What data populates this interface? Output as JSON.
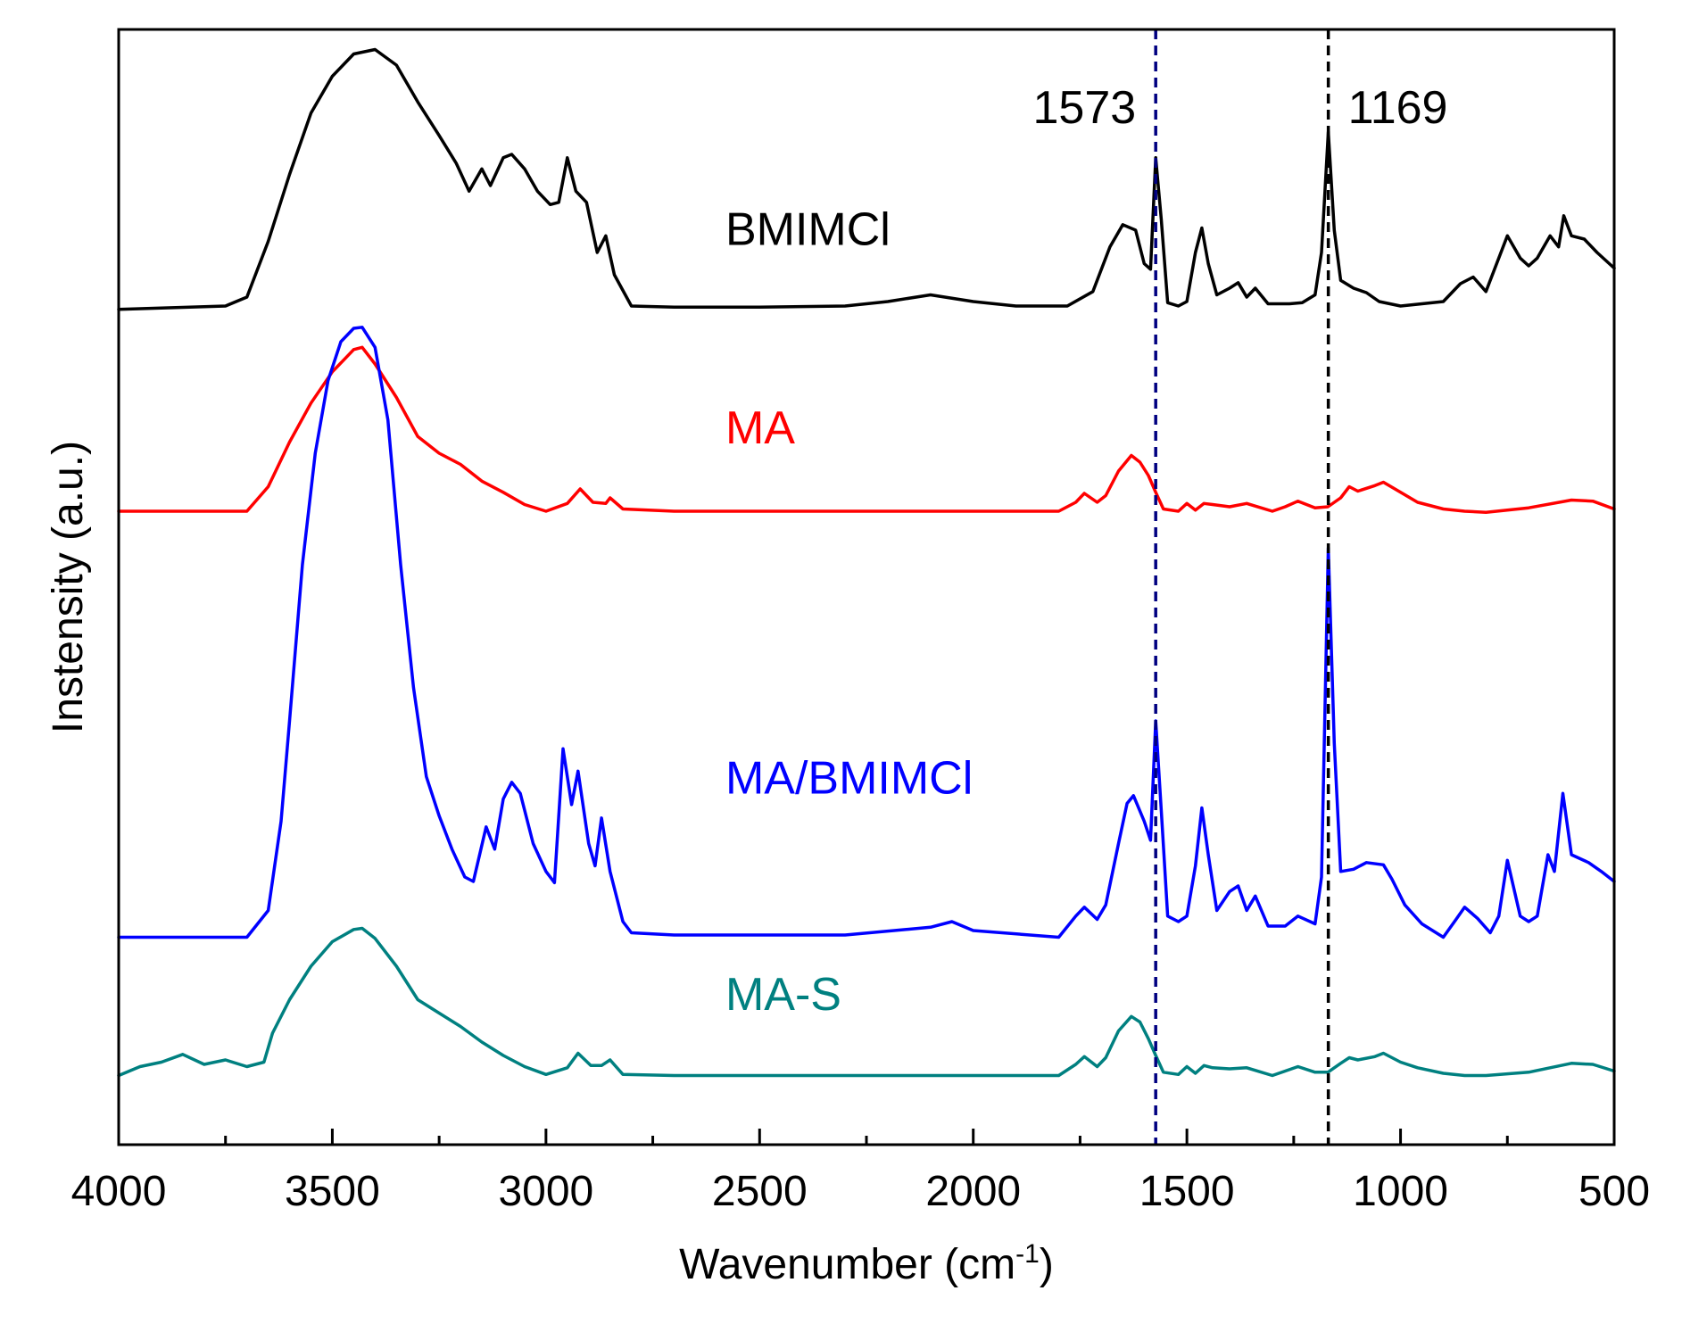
{
  "chart_data": {
    "type": "line",
    "title": "",
    "xlabel": "Wavenumber (cm",
    "xlabel_sup": "-1",
    "xlabel_close": ")",
    "ylabel": "Instensity (a.u.)",
    "xlim": [
      4000,
      500
    ],
    "ylim": [
      0,
      100
    ],
    "x_ticks": [
      4000,
      3500,
      3000,
      2500,
      2000,
      1500,
      1000,
      500
    ],
    "x_tick_labels": [
      "4000",
      "3500",
      "3000",
      "2500",
      "2000",
      "1500",
      "1000",
      "500"
    ],
    "x_minor_ticks": [
      3750,
      3250,
      2750,
      2250,
      1750,
      1250,
      750
    ],
    "grid": false,
    "series": [
      {
        "name": "BMIMCl",
        "color": "#000000",
        "label_x": 2580,
        "label_y": 80.7,
        "points": [
          [
            4000,
            74.9
          ],
          [
            3750,
            75.2
          ],
          [
            3700,
            76
          ],
          [
            3650,
            81
          ],
          [
            3600,
            87
          ],
          [
            3550,
            92.5
          ],
          [
            3500,
            95.8
          ],
          [
            3450,
            97.8
          ],
          [
            3400,
            98.2
          ],
          [
            3350,
            96.8
          ],
          [
            3300,
            93.5
          ],
          [
            3250,
            90.5
          ],
          [
            3210,
            88
          ],
          [
            3180,
            85.5
          ],
          [
            3150,
            87.5
          ],
          [
            3130,
            86
          ],
          [
            3100,
            88.5
          ],
          [
            3080,
            88.8
          ],
          [
            3050,
            87.5
          ],
          [
            3020,
            85.5
          ],
          [
            2990,
            84.3
          ],
          [
            2970,
            84.5
          ],
          [
            2950,
            88.5
          ],
          [
            2930,
            85.5
          ],
          [
            2905,
            84.5
          ],
          [
            2880,
            80
          ],
          [
            2860,
            81.5
          ],
          [
            2840,
            78
          ],
          [
            2800,
            75.2
          ],
          [
            2700,
            75.1
          ],
          [
            2500,
            75.1
          ],
          [
            2300,
            75.2
          ],
          [
            2200,
            75.6
          ],
          [
            2100,
            76.2
          ],
          [
            2000,
            75.6
          ],
          [
            1900,
            75.2
          ],
          [
            1780,
            75.2
          ],
          [
            1720,
            76.5
          ],
          [
            1680,
            80.5
          ],
          [
            1650,
            82.5
          ],
          [
            1620,
            82
          ],
          [
            1600,
            79
          ],
          [
            1585,
            78.5
          ],
          [
            1573,
            88.5
          ],
          [
            1560,
            83
          ],
          [
            1545,
            75.5
          ],
          [
            1520,
            75.2
          ],
          [
            1500,
            75.6
          ],
          [
            1480,
            80
          ],
          [
            1465,
            82.2
          ],
          [
            1450,
            79
          ],
          [
            1430,
            76.2
          ],
          [
            1400,
            76.8
          ],
          [
            1380,
            77.3
          ],
          [
            1360,
            76
          ],
          [
            1340,
            76.8
          ],
          [
            1310,
            75.4
          ],
          [
            1260,
            75.4
          ],
          [
            1230,
            75.5
          ],
          [
            1200,
            76.2
          ],
          [
            1185,
            80
          ],
          [
            1169,
            90.8
          ],
          [
            1155,
            82
          ],
          [
            1140,
            77.5
          ],
          [
            1110,
            76.8
          ],
          [
            1080,
            76.4
          ],
          [
            1050,
            75.6
          ],
          [
            1000,
            75.2
          ],
          [
            950,
            75.4
          ],
          [
            900,
            75.6
          ],
          [
            860,
            77.2
          ],
          [
            830,
            77.8
          ],
          [
            800,
            76.5
          ],
          [
            780,
            78.5
          ],
          [
            750,
            81.5
          ],
          [
            720,
            79.5
          ],
          [
            700,
            78.8
          ],
          [
            680,
            79.5
          ],
          [
            650,
            81.5
          ],
          [
            630,
            80.5
          ],
          [
            618,
            83.3
          ],
          [
            600,
            81.5
          ],
          [
            570,
            81.2
          ],
          [
            540,
            80
          ],
          [
            500,
            78.6
          ]
        ]
      },
      {
        "name": "MA",
        "color": "#ff0000",
        "label_x": 2580,
        "label_y": 62.9,
        "points": [
          [
            4000,
            56.8
          ],
          [
            3700,
            56.8
          ],
          [
            3650,
            59
          ],
          [
            3600,
            63
          ],
          [
            3550,
            66.5
          ],
          [
            3500,
            69.3
          ],
          [
            3450,
            71.3
          ],
          [
            3430,
            71.5
          ],
          [
            3400,
            70
          ],
          [
            3350,
            67
          ],
          [
            3300,
            63.5
          ],
          [
            3250,
            62
          ],
          [
            3200,
            61
          ],
          [
            3150,
            59.5
          ],
          [
            3100,
            58.5
          ],
          [
            3050,
            57.4
          ],
          [
            3000,
            56.8
          ],
          [
            2950,
            57.5
          ],
          [
            2920,
            58.8
          ],
          [
            2890,
            57.6
          ],
          [
            2860,
            57.5
          ],
          [
            2850,
            58
          ],
          [
            2820,
            57
          ],
          [
            2700,
            56.8
          ],
          [
            2300,
            56.8
          ],
          [
            1800,
            56.8
          ],
          [
            1760,
            57.6
          ],
          [
            1740,
            58.4
          ],
          [
            1710,
            57.6
          ],
          [
            1690,
            58.2
          ],
          [
            1660,
            60.4
          ],
          [
            1630,
            61.8
          ],
          [
            1610,
            61.2
          ],
          [
            1590,
            60
          ],
          [
            1573,
            58.5
          ],
          [
            1555,
            57
          ],
          [
            1520,
            56.8
          ],
          [
            1500,
            57.5
          ],
          [
            1480,
            56.9
          ],
          [
            1460,
            57.5
          ],
          [
            1440,
            57.4
          ],
          [
            1400,
            57.2
          ],
          [
            1360,
            57.5
          ],
          [
            1300,
            56.8
          ],
          [
            1270,
            57.2
          ],
          [
            1240,
            57.7
          ],
          [
            1200,
            57.1
          ],
          [
            1170,
            57.2
          ],
          [
            1140,
            58
          ],
          [
            1120,
            59
          ],
          [
            1100,
            58.6
          ],
          [
            1060,
            59.1
          ],
          [
            1040,
            59.4
          ],
          [
            1000,
            58.5
          ],
          [
            960,
            57.6
          ],
          [
            900,
            57
          ],
          [
            850,
            56.8
          ],
          [
            800,
            56.7
          ],
          [
            700,
            57.1
          ],
          [
            600,
            57.8
          ],
          [
            550,
            57.7
          ],
          [
            500,
            57
          ]
        ]
      },
      {
        "name": "MA/BMIMCl",
        "color": "#0000ff",
        "label_x": 2580,
        "label_y": 31.5,
        "points": [
          [
            4000,
            18.6
          ],
          [
            3700,
            18.6
          ],
          [
            3650,
            21
          ],
          [
            3620,
            29
          ],
          [
            3600,
            38
          ],
          [
            3570,
            52
          ],
          [
            3540,
            62
          ],
          [
            3510,
            68.5
          ],
          [
            3480,
            72
          ],
          [
            3450,
            73.2
          ],
          [
            3430,
            73.3
          ],
          [
            3400,
            71.5
          ],
          [
            3370,
            65
          ],
          [
            3340,
            52
          ],
          [
            3310,
            41
          ],
          [
            3280,
            33
          ],
          [
            3250,
            29.5
          ],
          [
            3220,
            26.5
          ],
          [
            3190,
            24
          ],
          [
            3170,
            23.6
          ],
          [
            3140,
            28.5
          ],
          [
            3120,
            26.5
          ],
          [
            3100,
            31
          ],
          [
            3080,
            32.5
          ],
          [
            3060,
            31.5
          ],
          [
            3030,
            27
          ],
          [
            3000,
            24.5
          ],
          [
            2980,
            23.5
          ],
          [
            2960,
            35.5
          ],
          [
            2940,
            30.5
          ],
          [
            2925,
            33.5
          ],
          [
            2900,
            27
          ],
          [
            2885,
            25
          ],
          [
            2870,
            29.3
          ],
          [
            2850,
            24.5
          ],
          [
            2820,
            20
          ],
          [
            2800,
            19
          ],
          [
            2700,
            18.8
          ],
          [
            2300,
            18.8
          ],
          [
            2100,
            19.5
          ],
          [
            2050,
            20
          ],
          [
            2000,
            19.2
          ],
          [
            1800,
            18.6
          ],
          [
            1760,
            20.5
          ],
          [
            1740,
            21.3
          ],
          [
            1710,
            20.2
          ],
          [
            1690,
            21.5
          ],
          [
            1660,
            27
          ],
          [
            1640,
            30.6
          ],
          [
            1625,
            31.3
          ],
          [
            1600,
            29
          ],
          [
            1585,
            27.3
          ],
          [
            1573,
            38
          ],
          [
            1560,
            30
          ],
          [
            1545,
            20.5
          ],
          [
            1520,
            20
          ],
          [
            1500,
            20.5
          ],
          [
            1480,
            25
          ],
          [
            1465,
            30.2
          ],
          [
            1450,
            26
          ],
          [
            1430,
            21
          ],
          [
            1400,
            22.7
          ],
          [
            1380,
            23.2
          ],
          [
            1360,
            21
          ],
          [
            1340,
            22.3
          ],
          [
            1310,
            19.6
          ],
          [
            1270,
            19.6
          ],
          [
            1240,
            20.5
          ],
          [
            1200,
            19.8
          ],
          [
            1185,
            24
          ],
          [
            1169,
            53.5
          ],
          [
            1155,
            36
          ],
          [
            1140,
            24.5
          ],
          [
            1110,
            24.7
          ],
          [
            1080,
            25.3
          ],
          [
            1040,
            25.1
          ],
          [
            1020,
            23.8
          ],
          [
            990,
            21.5
          ],
          [
            950,
            19.8
          ],
          [
            900,
            18.6
          ],
          [
            870,
            20.2
          ],
          [
            850,
            21.3
          ],
          [
            820,
            20.3
          ],
          [
            790,
            19
          ],
          [
            770,
            20.5
          ],
          [
            750,
            25.5
          ],
          [
            720,
            20.5
          ],
          [
            700,
            20
          ],
          [
            680,
            20.5
          ],
          [
            655,
            26
          ],
          [
            640,
            24.5
          ],
          [
            620,
            31.5
          ],
          [
            600,
            26
          ],
          [
            560,
            25.3
          ],
          [
            530,
            24.5
          ],
          [
            500,
            23.6
          ]
        ]
      },
      {
        "name": "MA-S",
        "color": "#008080",
        "label_x": 2580,
        "label_y": 12.1,
        "points": [
          [
            4000,
            6.2
          ],
          [
            3950,
            7
          ],
          [
            3900,
            7.4
          ],
          [
            3850,
            8.1
          ],
          [
            3800,
            7.2
          ],
          [
            3750,
            7.6
          ],
          [
            3700,
            7
          ],
          [
            3660,
            7.4
          ],
          [
            3640,
            10
          ],
          [
            3600,
            13
          ],
          [
            3550,
            16
          ],
          [
            3500,
            18.2
          ],
          [
            3450,
            19.3
          ],
          [
            3430,
            19.4
          ],
          [
            3400,
            18.5
          ],
          [
            3350,
            16
          ],
          [
            3300,
            13
          ],
          [
            3250,
            11.8
          ],
          [
            3200,
            10.6
          ],
          [
            3150,
            9.2
          ],
          [
            3100,
            8
          ],
          [
            3050,
            7
          ],
          [
            3000,
            6.3
          ],
          [
            2950,
            6.9
          ],
          [
            2925,
            8.2
          ],
          [
            2895,
            7.1
          ],
          [
            2870,
            7.1
          ],
          [
            2850,
            7.6
          ],
          [
            2820,
            6.3
          ],
          [
            2700,
            6.2
          ],
          [
            2300,
            6.2
          ],
          [
            1800,
            6.2
          ],
          [
            1760,
            7.2
          ],
          [
            1740,
            7.9
          ],
          [
            1710,
            7
          ],
          [
            1690,
            7.8
          ],
          [
            1660,
            10.2
          ],
          [
            1630,
            11.5
          ],
          [
            1610,
            11
          ],
          [
            1590,
            9.5
          ],
          [
            1573,
            8
          ],
          [
            1555,
            6.5
          ],
          [
            1520,
            6.3
          ],
          [
            1500,
            7
          ],
          [
            1480,
            6.4
          ],
          [
            1460,
            7.1
          ],
          [
            1440,
            6.9
          ],
          [
            1400,
            6.8
          ],
          [
            1360,
            6.9
          ],
          [
            1300,
            6.2
          ],
          [
            1270,
            6.6
          ],
          [
            1240,
            7
          ],
          [
            1200,
            6.5
          ],
          [
            1170,
            6.5
          ],
          [
            1140,
            7.3
          ],
          [
            1120,
            7.8
          ],
          [
            1100,
            7.6
          ],
          [
            1060,
            7.9
          ],
          [
            1040,
            8.2
          ],
          [
            1000,
            7.4
          ],
          [
            960,
            6.9
          ],
          [
            900,
            6.4
          ],
          [
            850,
            6.2
          ],
          [
            800,
            6.2
          ],
          [
            700,
            6.5
          ],
          [
            600,
            7.3
          ],
          [
            550,
            7.2
          ],
          [
            500,
            6.6
          ]
        ]
      }
    ],
    "reference_lines": [
      {
        "x": 1573,
        "label": "1573",
        "color": "#000080",
        "label_side": "left"
      },
      {
        "x": 1169,
        "label": "1169",
        "color": "#000000",
        "label_side": "right"
      }
    ]
  }
}
